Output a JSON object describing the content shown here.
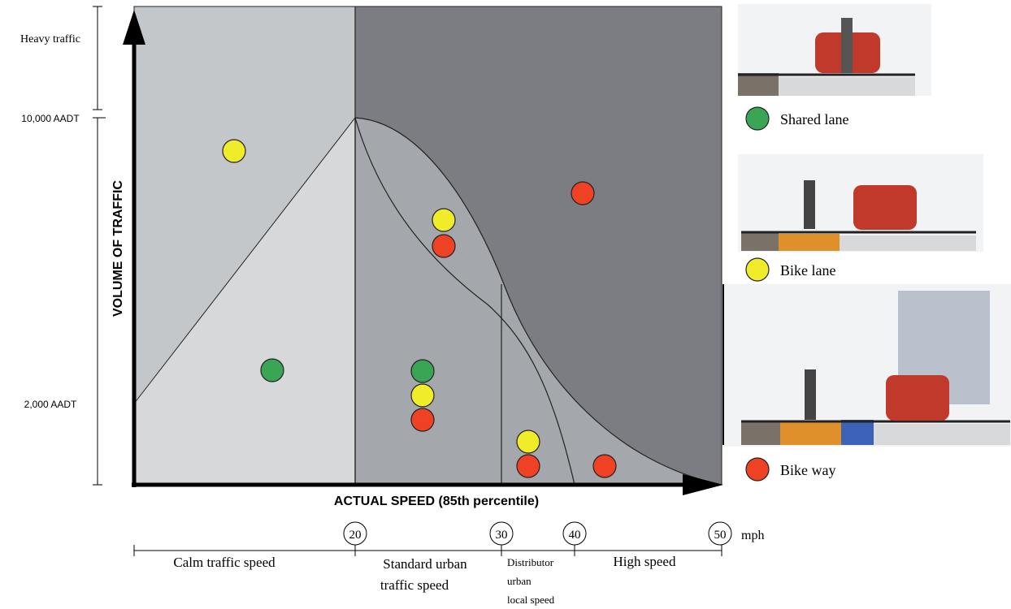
{
  "y_axis": {
    "title": "VOLUME OF TRAFFIC",
    "labels": [
      "Heavy traffic",
      "10,000 AADT",
      "2,000 AADT"
    ]
  },
  "x_axis": {
    "title": "ACTUAL SPEED (85th percentile)",
    "speeds": [
      "20",
      "30",
      "40",
      "50"
    ],
    "unit": "mph"
  },
  "speed_ranges": [
    {
      "lines": [
        "Calm traffic speed"
      ]
    },
    {
      "lines": [
        "Standard urban",
        "traffic speed"
      ]
    },
    {
      "lines": [
        "Distributor",
        "urban",
        "local speed"
      ]
    },
    {
      "lines": [
        "High speed"
      ]
    }
  ],
  "legend": [
    "Shared lane",
    "Bike lane",
    "Bike way"
  ]
}
